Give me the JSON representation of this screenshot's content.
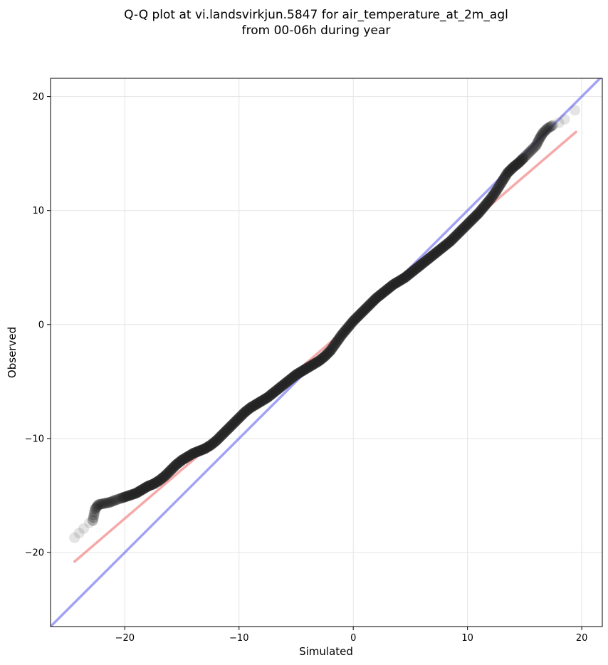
{
  "chart_data": {
    "type": "scatter",
    "title": [
      "Q-Q plot at vi.landsvirkjun.5847 for air_temperature_at_2m_agl",
      "from 00-06h during year"
    ],
    "xlabel": "Simulated",
    "ylabel": "Observed",
    "xlim": [
      -26.5,
      21.8
    ],
    "ylim": [
      -26.5,
      21.6
    ],
    "xticks": [
      -20,
      -10,
      0,
      10,
      20
    ],
    "yticks": [
      -20,
      -10,
      0,
      10,
      20
    ],
    "xtick_labels": [
      "−20",
      "−10",
      "0",
      "10",
      "20"
    ],
    "ytick_labels": [
      "−20",
      "−10",
      "0",
      "10",
      "20"
    ],
    "grid": true,
    "series": [
      {
        "kind": "quantile-points",
        "color": "#222222",
        "points": [
          [
            -24.4,
            -18.7
          ],
          [
            -24.0,
            -18.3
          ],
          [
            -23.6,
            -17.9
          ],
          [
            -23.1,
            -17.4
          ],
          [
            -22.8,
            -17.2
          ],
          [
            -22.6,
            -16.2
          ],
          [
            -22.3,
            -15.8
          ],
          [
            -21.8,
            -15.7
          ],
          [
            -21.3,
            -15.6
          ],
          [
            -20.8,
            -15.4
          ],
          [
            -20.2,
            -15.2
          ],
          [
            -19.6,
            -15.0
          ],
          [
            -19.0,
            -14.8
          ],
          [
            -18.5,
            -14.5
          ],
          [
            -18.0,
            -14.2
          ],
          [
            -17.5,
            -14.0
          ],
          [
            -17.0,
            -13.7
          ],
          [
            -16.5,
            -13.3
          ],
          [
            -16.0,
            -12.8
          ],
          [
            -15.5,
            -12.3
          ],
          [
            -15.0,
            -11.9
          ],
          [
            -14.5,
            -11.6
          ],
          [
            -14.0,
            -11.3
          ],
          [
            -13.5,
            -11.1
          ],
          [
            -13.0,
            -10.9
          ],
          [
            -12.5,
            -10.6
          ],
          [
            -12.0,
            -10.2
          ],
          [
            -11.5,
            -9.7
          ],
          [
            -11.0,
            -9.2
          ],
          [
            -10.5,
            -8.7
          ],
          [
            -10.0,
            -8.2
          ],
          [
            -9.5,
            -7.7
          ],
          [
            -9.0,
            -7.3
          ],
          [
            -8.5,
            -7.0
          ],
          [
            -8.0,
            -6.7
          ],
          [
            -7.5,
            -6.4
          ],
          [
            -7.0,
            -6.0
          ],
          [
            -6.5,
            -5.6
          ],
          [
            -6.0,
            -5.2
          ],
          [
            -5.5,
            -4.8
          ],
          [
            -5.0,
            -4.4
          ],
          [
            -4.5,
            -4.1
          ],
          [
            -4.0,
            -3.8
          ],
          [
            -3.5,
            -3.5
          ],
          [
            -3.0,
            -3.2
          ],
          [
            -2.5,
            -2.8
          ],
          [
            -2.0,
            -2.3
          ],
          [
            -1.5,
            -1.6
          ],
          [
            -1.0,
            -0.9
          ],
          [
            -0.5,
            -0.3
          ],
          [
            0.0,
            0.3
          ],
          [
            0.5,
            0.8
          ],
          [
            1.0,
            1.3
          ],
          [
            1.5,
            1.8
          ],
          [
            2.0,
            2.3
          ],
          [
            2.5,
            2.7
          ],
          [
            3.0,
            3.1
          ],
          [
            3.5,
            3.5
          ],
          [
            4.0,
            3.8
          ],
          [
            4.5,
            4.1
          ],
          [
            5.0,
            4.5
          ],
          [
            5.5,
            4.9
          ],
          [
            6.0,
            5.3
          ],
          [
            6.5,
            5.7
          ],
          [
            7.0,
            6.1
          ],
          [
            7.5,
            6.5
          ],
          [
            8.0,
            6.9
          ],
          [
            8.5,
            7.3
          ],
          [
            9.0,
            7.8
          ],
          [
            9.5,
            8.3
          ],
          [
            10.0,
            8.8
          ],
          [
            10.5,
            9.3
          ],
          [
            11.0,
            9.8
          ],
          [
            11.5,
            10.4
          ],
          [
            12.0,
            11.0
          ],
          [
            12.5,
            11.7
          ],
          [
            13.0,
            12.5
          ],
          [
            13.5,
            13.3
          ],
          [
            14.0,
            13.8
          ],
          [
            14.5,
            14.2
          ],
          [
            15.0,
            14.7
          ],
          [
            15.5,
            15.2
          ],
          [
            16.0,
            15.7
          ],
          [
            16.3,
            16.3
          ],
          [
            16.6,
            16.8
          ],
          [
            17.0,
            17.2
          ],
          [
            17.5,
            17.5
          ],
          [
            18.0,
            17.7
          ],
          [
            18.5,
            18.0
          ],
          [
            19.4,
            18.8
          ]
        ]
      },
      {
        "kind": "regression-line",
        "color": "#f07070",
        "from": [
          -24.4,
          -20.8
        ],
        "to": [
          19.5,
          16.9
        ]
      },
      {
        "kind": "identity-line",
        "color": "#6666ee",
        "from": [
          -26.5,
          -26.5
        ],
        "to": [
          21.8,
          21.8
        ]
      }
    ]
  }
}
